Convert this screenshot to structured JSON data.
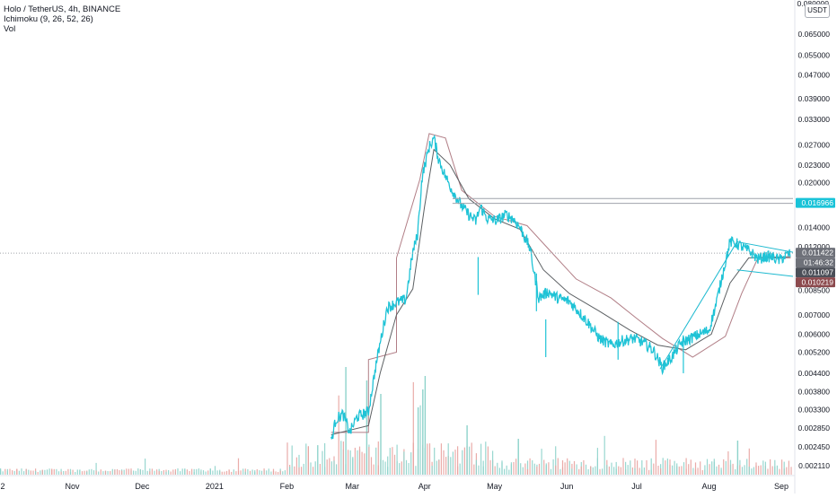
{
  "header": {
    "symbol_line": "Holo / TetherUS, 4h, BINANCE",
    "indicator_line": "Ichimoku (9, 26, 52, 26)",
    "volume_line": "Vol"
  },
  "price_axis": {
    "currency": "USDT",
    "top_partial": "0.080000"
  },
  "colors": {
    "price_line": "#1fc3d6",
    "kijun_line": "#b17e86",
    "tenkan_line": "#5c6063",
    "trendline": "#1fbad0",
    "volume_up": "#8ed3cb",
    "volume_down": "#e8a3a0",
    "axis_text": "#131722",
    "badge_cyan": "#19c3d8",
    "badge_gray": "#6e7179",
    "badge_dark": "#4b4f58",
    "badge_brown": "#8c4a4e"
  },
  "chart_data": {
    "type": "line",
    "title": "Holo / TetherUS, 4h, BINANCE",
    "y_scale": "log",
    "ylim": [
      0.00198,
      0.075
    ],
    "xlim": [
      "2020-10-01",
      "2021-09-06"
    ],
    "grid": false,
    "x_ticks": [
      {
        "x": "2020-10-01",
        "label": "2"
      },
      {
        "x": "2020-11-01",
        "label": "Nov"
      },
      {
        "x": "2020-12-01",
        "label": "Dec"
      },
      {
        "x": "2021-01-01",
        "label": "2021"
      },
      {
        "x": "2021-02-01",
        "label": "Feb"
      },
      {
        "x": "2021-03-01",
        "label": "Mar"
      },
      {
        "x": "2021-04-01",
        "label": "Apr"
      },
      {
        "x": "2021-05-01",
        "label": "May"
      },
      {
        "x": "2021-06-01",
        "label": "Jun"
      },
      {
        "x": "2021-07-01",
        "label": "Jul"
      },
      {
        "x": "2021-08-01",
        "label": "Aug"
      },
      {
        "x": "2021-09-01",
        "label": "Sep"
      }
    ],
    "y_ticks": [
      "0.065000",
      "0.055000",
      "0.047000",
      "0.039000",
      "0.033000",
      "0.027000",
      "0.023000",
      "0.020000",
      "0.014000",
      "0.012000",
      "0.008500",
      "0.007000",
      "0.006000",
      "0.005200",
      "0.004400",
      "0.003800",
      "0.003300",
      "0.002850",
      "0.002450",
      "0.002110"
    ],
    "series": [
      {
        "role": "price",
        "x": [
          "2021-02-20",
          "2021-02-22",
          "2021-02-25",
          "2021-02-28",
          "2021-03-03",
          "2021-03-08",
          "2021-03-11",
          "2021-03-13",
          "2021-03-16",
          "2021-03-20",
          "2021-03-24",
          "2021-03-27",
          "2021-03-29",
          "2021-03-31",
          "2021-04-03",
          "2021-04-05",
          "2021-04-07",
          "2021-04-10",
          "2021-04-13",
          "2021-04-17",
          "2021-04-20",
          "2021-04-23",
          "2021-04-25",
          "2021-04-28",
          "2021-05-02",
          "2021-05-06",
          "2021-05-09",
          "2021-05-12",
          "2021-05-16",
          "2021-05-20",
          "2021-05-24",
          "2021-05-28",
          "2021-06-02",
          "2021-06-06",
          "2021-06-10",
          "2021-06-15",
          "2021-06-20",
          "2021-06-25",
          "2021-06-30",
          "2021-07-04",
          "2021-07-08",
          "2021-07-12",
          "2021-07-16",
          "2021-07-20",
          "2021-07-24",
          "2021-07-28",
          "2021-08-01",
          "2021-08-04",
          "2021-08-07",
          "2021-08-10",
          "2021-08-13",
          "2021-08-16",
          "2021-08-19",
          "2021-08-22",
          "2021-08-25",
          "2021-08-28",
          "2021-08-31",
          "2021-09-03",
          "2021-09-05"
        ],
        "y": [
          0.00256,
          0.00305,
          0.00318,
          0.00275,
          0.0031,
          0.00325,
          0.0046,
          0.0056,
          0.0074,
          0.0077,
          0.0079,
          0.0115,
          0.0132,
          0.021,
          0.0265,
          0.0285,
          0.0242,
          0.021,
          0.0187,
          0.0166,
          0.0155,
          0.0147,
          0.0165,
          0.015,
          0.0148,
          0.0155,
          0.015,
          0.014,
          0.012,
          0.008,
          0.0084,
          0.008,
          0.0078,
          0.0072,
          0.0066,
          0.0058,
          0.0055,
          0.0057,
          0.0058,
          0.0056,
          0.0053,
          0.0046,
          0.005,
          0.0056,
          0.0058,
          0.006,
          0.0062,
          0.0076,
          0.0098,
          0.0125,
          0.0123,
          0.0119,
          0.0115,
          0.0109,
          0.0111,
          0.0111,
          0.0108,
          0.0112,
          0.0114
        ]
      },
      {
        "role": "kijun",
        "x": [
          "2021-02-20",
          "2021-03-08",
          "2021-03-08",
          "2021-03-20",
          "2021-03-20",
          "2021-03-30",
          "2021-04-03",
          "2021-04-10",
          "2021-04-17",
          "2021-05-01",
          "2021-05-15",
          "2021-05-25",
          "2021-06-05",
          "2021-06-20",
          "2021-07-01",
          "2021-07-12",
          "2021-07-25",
          "2021-08-08",
          "2021-08-15",
          "2021-08-22",
          "2021-09-05"
        ],
        "y": [
          0.00275,
          0.00275,
          0.0049,
          0.0052,
          0.011,
          0.0205,
          0.0295,
          0.0285,
          0.0188,
          0.0153,
          0.0142,
          0.0116,
          0.0093,
          0.008,
          0.0068,
          0.0058,
          0.005,
          0.0059,
          0.0083,
          0.011,
          0.011
        ]
      },
      {
        "role": "tenkan",
        "x": [
          "2021-02-20",
          "2021-03-08",
          "2021-03-13",
          "2021-03-20",
          "2021-03-27",
          "2021-04-01",
          "2021-04-05",
          "2021-04-12",
          "2021-04-20",
          "2021-05-01",
          "2021-05-12",
          "2021-05-22",
          "2021-06-02",
          "2021-06-15",
          "2021-06-28",
          "2021-07-10",
          "2021-07-22",
          "2021-08-02",
          "2021-08-10",
          "2021-08-18",
          "2021-09-05"
        ],
        "y": [
          0.0027,
          0.0029,
          0.0044,
          0.007,
          0.0086,
          0.0165,
          0.026,
          0.023,
          0.0176,
          0.015,
          0.0138,
          0.01,
          0.0083,
          0.0072,
          0.0062,
          0.0055,
          0.0053,
          0.006,
          0.009,
          0.011,
          0.0111
        ]
      },
      {
        "role": "volume",
        "x_range": [
          "2020-10-01",
          "2021-09-06"
        ],
        "note": "histogram, spikes concentrated Feb-Apr 2021"
      }
    ],
    "annotations": [
      {
        "type": "horizontal_line",
        "y": 0.01762,
        "x_from": "2021-04-13",
        "x_to": "2021-09-06"
      },
      {
        "type": "horizontal_line",
        "y": 0.01696,
        "x_from": "2021-04-13",
        "x_to": "2021-09-06"
      },
      {
        "type": "dotted_line",
        "y": 0.01142
      },
      {
        "type": "trendline",
        "points": [
          [
            "2021-07-11",
            0.00455
          ],
          [
            "2021-08-13",
            0.0125
          ]
        ]
      },
      {
        "type": "trendline",
        "points": [
          [
            "2021-08-13",
            0.0125
          ],
          [
            "2021-09-06",
            0.0115
          ]
        ]
      },
      {
        "type": "trendline",
        "points": [
          [
            "2021-08-13",
            0.01
          ],
          [
            "2021-09-06",
            0.0095
          ]
        ]
      }
    ],
    "badges": [
      {
        "y": 0.01696,
        "label": "0.016966",
        "kind": "cyan"
      },
      {
        "y": 0.01142,
        "label": "0.011422",
        "kind": "gray"
      },
      {
        "y": 0.01142,
        "label": "01:46:32",
        "kind": "gray"
      },
      {
        "y": 0.0111,
        "label": "0.011097",
        "kind": "dark"
      },
      {
        "y": 0.01022,
        "label": "0.010219",
        "kind": "brown"
      }
    ]
  }
}
